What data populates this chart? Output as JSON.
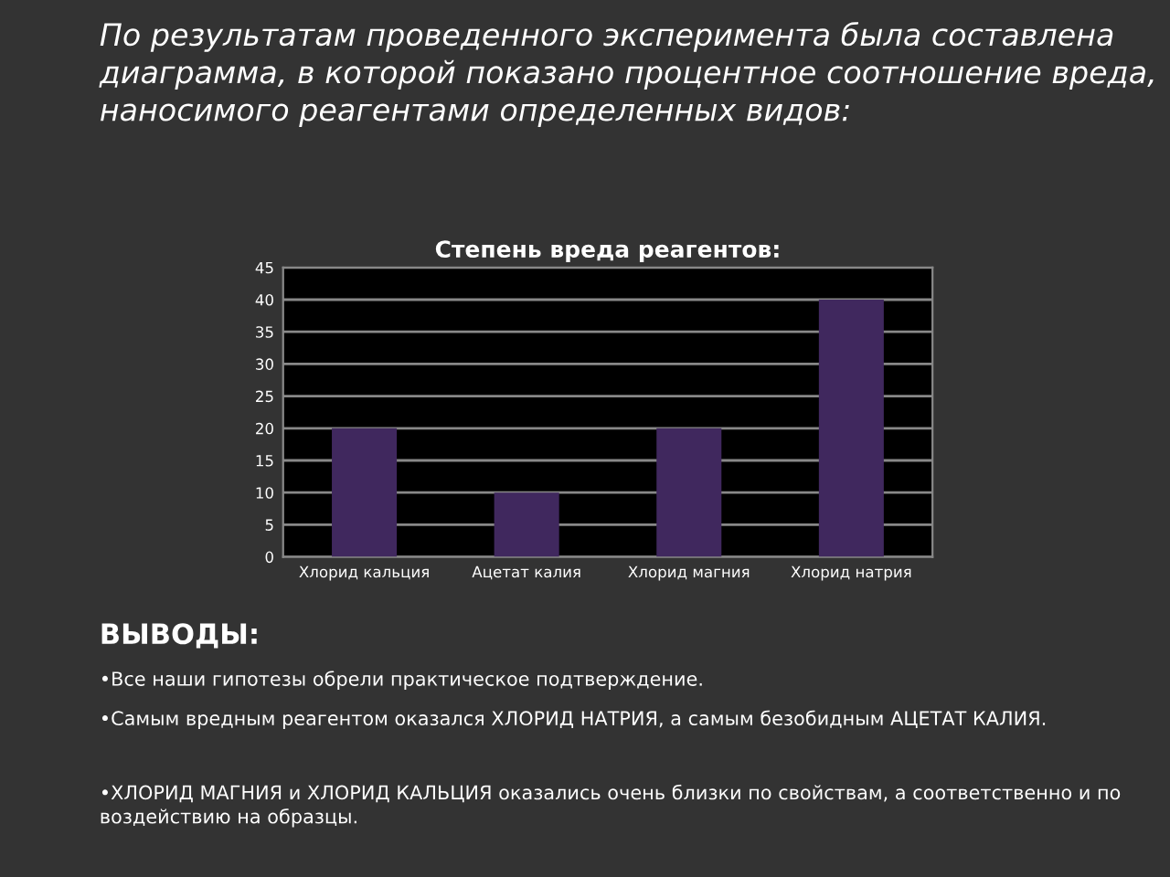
{
  "chart_data": {
    "type": "bar",
    "title": "Степень вреда реагентов:",
    "categories": [
      "Хлорид кальция",
      "Ацетат калия",
      "Хлорид магния",
      "Хлорид натрия"
    ],
    "values": [
      20,
      10,
      20,
      40
    ],
    "color": "#40285e",
    "ylim": [
      0,
      45
    ],
    "yticks": [
      0,
      5,
      10,
      15,
      20,
      25,
      30,
      35,
      40,
      45
    ],
    "grid": "y",
    "annotations": [
      "По результатам проведенного эксперимента была составлена диаграмма, в которой показано процентное соотношение вреда, наносимого реагентами определенных видов:",
      "ВЫВОДЫ:",
      "•Все наши гипотезы обрели практическое подтверждение.",
      "•Самым вредным реагентом оказался ХЛОРИД НАТРИЯ, а самым безобидным АЦЕТАТ КАЛИЯ.",
      "•ХЛОРИД МАГНИЯ и ХЛОРИД КАЛЬЦИЯ оказались очень близки по свойствам, а соответственно и по воздействию на образцы."
    ]
  }
}
